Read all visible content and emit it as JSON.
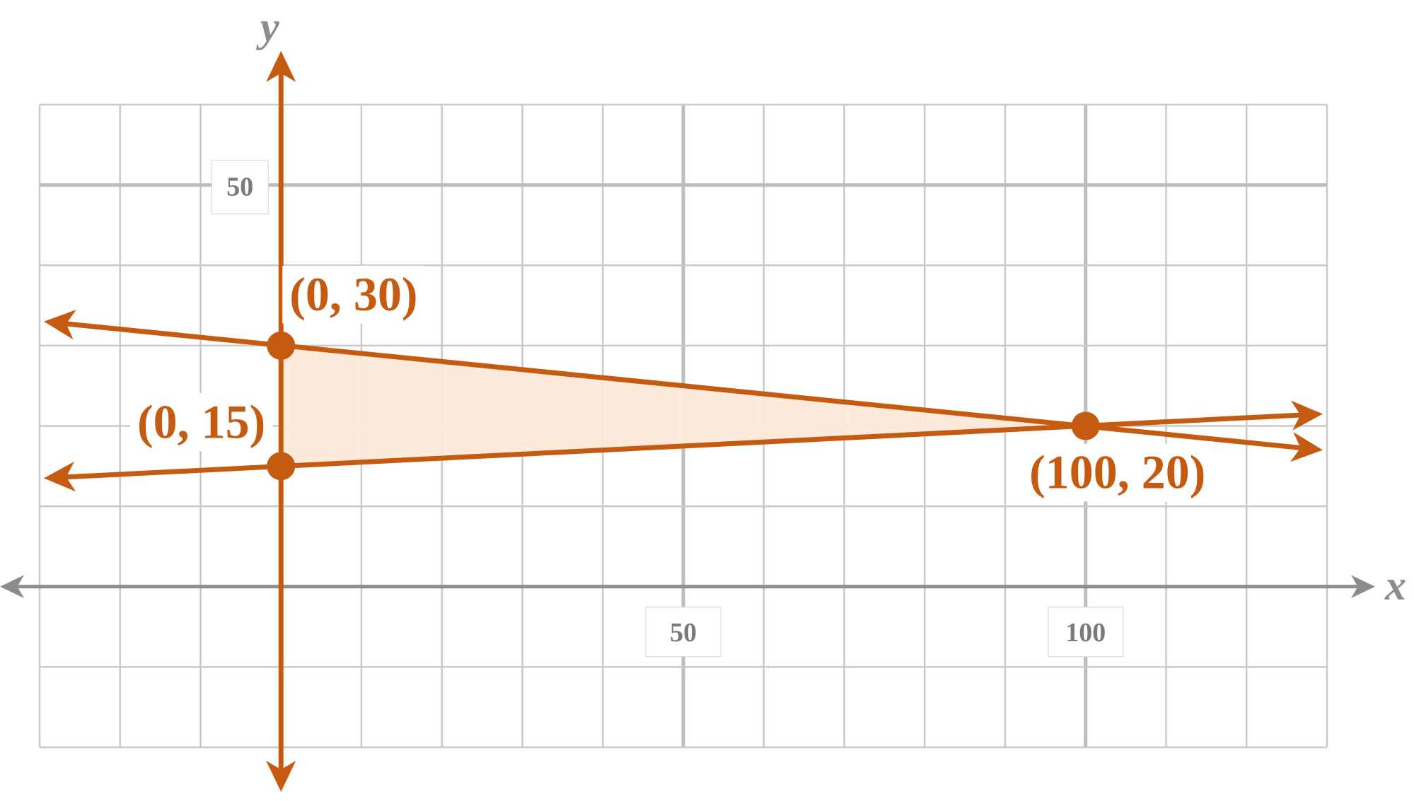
{
  "chart_data": {
    "type": "line",
    "xlabel": "x",
    "ylabel": "y",
    "xlim": [
      -30,
      130
    ],
    "ylim": [
      -20,
      60
    ],
    "grid": true,
    "x_ticks": [
      {
        "value": 50,
        "label": "50"
      },
      {
        "value": 100,
        "label": "100"
      }
    ],
    "y_ticks": [
      {
        "value": 50,
        "label": "50"
      }
    ],
    "series": [
      {
        "x": [
          -30,
          130
        ],
        "y": [
          33,
          17
        ]
      },
      {
        "x": [
          -30,
          130
        ],
        "y": [
          13.5,
          21.5
        ]
      },
      {
        "x": [
          0,
          0
        ],
        "y": [
          -25,
          67
        ]
      }
    ],
    "feasible_region": [
      [
        0,
        30
      ],
      [
        100,
        20
      ],
      [
        0,
        15
      ]
    ],
    "points": [
      {
        "x": 0,
        "y": 30,
        "label": "(0, 30)"
      },
      {
        "x": 0,
        "y": 15,
        "label": "(0, 15)"
      },
      {
        "x": 100,
        "y": 20,
        "label": "(100, 20)"
      }
    ],
    "colors": {
      "line": "#c55a11",
      "fill": "#fde9d9",
      "grid": "#c9c9c9",
      "axis": "#8c8c8c"
    }
  }
}
